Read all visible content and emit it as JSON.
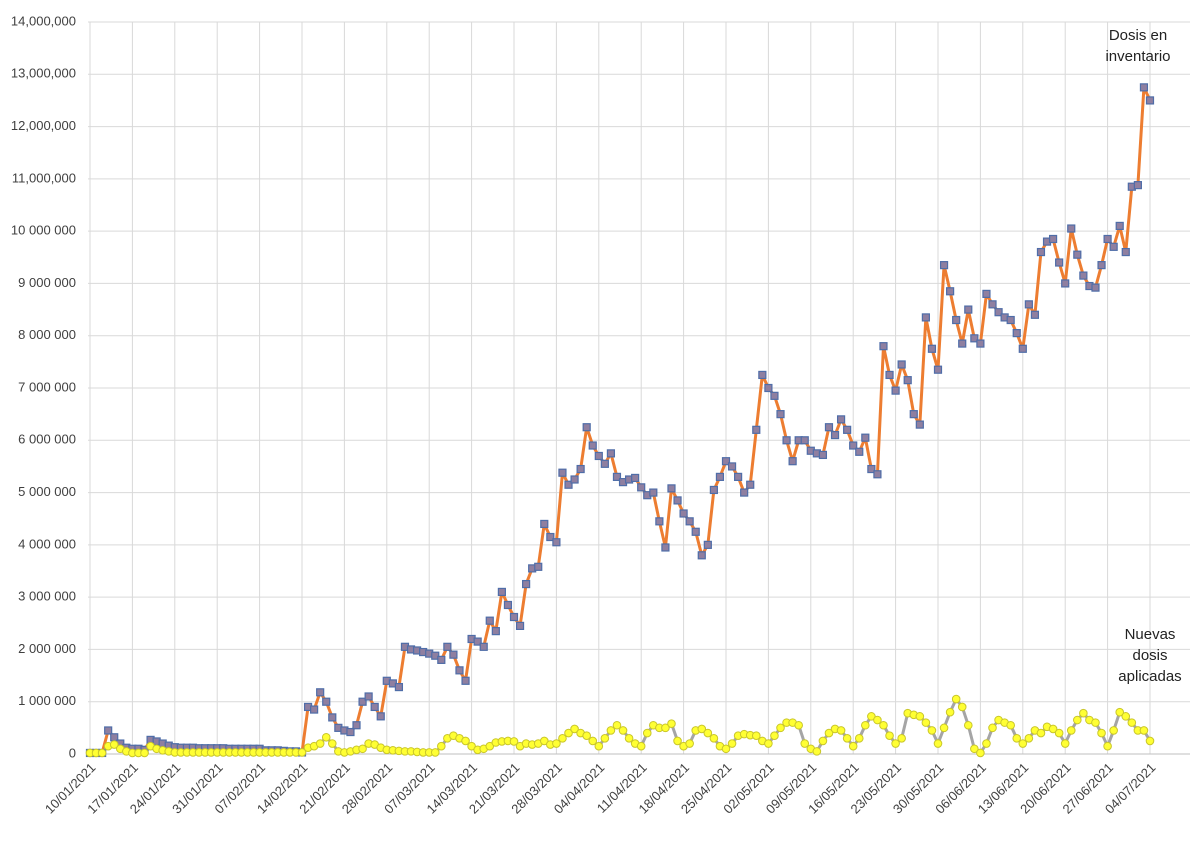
{
  "chart_data": {
    "type": "line",
    "categories": [
      "10/01/2021",
      null,
      null,
      null,
      null,
      null,
      null,
      "17/01/2021",
      null,
      null,
      null,
      null,
      null,
      null,
      "24/01/2021",
      null,
      null,
      null,
      null,
      null,
      null,
      "31/01/2021",
      null,
      null,
      null,
      null,
      null,
      null,
      "07/02/2021",
      null,
      null,
      null,
      null,
      null,
      null,
      "14/02/2021",
      null,
      null,
      null,
      null,
      null,
      null,
      "21/02/2021",
      null,
      null,
      null,
      null,
      null,
      null,
      "28/02/2021",
      null,
      null,
      null,
      null,
      null,
      null,
      "07/03/2021",
      null,
      null,
      null,
      null,
      null,
      null,
      "14/03/2021",
      null,
      null,
      null,
      null,
      null,
      null,
      "21/03/2021",
      null,
      null,
      null,
      null,
      null,
      null,
      "28/03/2021",
      null,
      null,
      null,
      null,
      null,
      null,
      "04/04/2021",
      null,
      null,
      null,
      null,
      null,
      null,
      "11/04/2021",
      null,
      null,
      null,
      null,
      null,
      null,
      "18/04/2021",
      null,
      null,
      null,
      null,
      null,
      null,
      "25/04/2021",
      null,
      null,
      null,
      null,
      null,
      null,
      "02/05/2021",
      null,
      null,
      null,
      null,
      null,
      null,
      "09/05/2021",
      null,
      null,
      null,
      null,
      null,
      null,
      "16/05/2021",
      null,
      null,
      null,
      null,
      null,
      null,
      "23/05/2021",
      null,
      null,
      null,
      null,
      null,
      null,
      "30/05/2021",
      null,
      null,
      null,
      null,
      null,
      null,
      "06/06/2021",
      null,
      null,
      null,
      null,
      null,
      null,
      "13/06/2021",
      null,
      null,
      null,
      null,
      null,
      null,
      "20/06/2021",
      null,
      null,
      null,
      null,
      null,
      null,
      "27/06/2021",
      null,
      null,
      null,
      null,
      null,
      null,
      "04/07/2021"
    ],
    "series": [
      {
        "name": "Dosis en inventario",
        "color": "#ed7d31",
        "marker": "square",
        "marker_color": "#8f7fa0",
        "marker_edge": "#4f6da8",
        "values": [
          20000,
          20000,
          20000,
          450000,
          320000,
          200000,
          120000,
          100000,
          100000,
          80000,
          270000,
          240000,
          200000,
          160000,
          130000,
          120000,
          120000,
          120000,
          110000,
          110000,
          110000,
          110000,
          110000,
          100000,
          100000,
          100000,
          100000,
          100000,
          100000,
          70000,
          70000,
          70000,
          60000,
          50000,
          50000,
          30000,
          900000,
          850000,
          1180000,
          1000000,
          700000,
          500000,
          450000,
          420000,
          550000,
          1000000,
          1100000,
          900000,
          720000,
          1400000,
          1350000,
          1280000,
          2050000,
          2000000,
          1980000,
          1950000,
          1920000,
          1880000,
          1800000,
          2050000,
          1900000,
          1600000,
          1400000,
          2200000,
          2150000,
          2050000,
          2550000,
          2350000,
          3100000,
          2850000,
          2620000,
          2450000,
          3250000,
          3550000,
          3580000,
          4400000,
          4150000,
          4050000,
          5380000,
          5150000,
          5250000,
          5450000,
          6250000,
          5900000,
          5700000,
          5550000,
          5750000,
          5300000,
          5200000,
          5250000,
          5280000,
          5100000,
          4950000,
          5000000,
          4450000,
          3950000,
          5080000,
          4850000,
          4600000,
          4450000,
          4250000,
          3800000,
          4000000,
          5050000,
          5300000,
          5600000,
          5500000,
          5300000,
          5000000,
          5150000,
          6200000,
          7250000,
          7000000,
          6850000,
          6500000,
          6000000,
          5600000,
          6000000,
          6000000,
          5800000,
          5750000,
          5720000,
          6250000,
          6100000,
          6400000,
          6200000,
          5900000,
          5780000,
          6050000,
          5450000,
          5350000,
          7800000,
          7250000,
          6950000,
          7450000,
          7150000,
          6500000,
          6300000,
          8350000,
          7750000,
          7350000,
          9350000,
          8850000,
          8300000,
          7850000,
          8500000,
          7950000,
          7850000,
          8800000,
          8600000,
          8450000,
          8350000,
          8300000,
          8050000,
          7750000,
          8600000,
          8400000,
          9600000,
          9800000,
          9850000,
          9400000,
          9000000,
          10050000,
          9550000,
          9150000,
          8950000,
          8920000,
          9350000,
          9850000,
          9700000,
          10100000,
          9600000,
          10850000,
          10880000,
          12750000,
          12500000
        ]
      },
      {
        "name": "Nuevas dosis aplicadas",
        "color": "#a5a5a5",
        "marker": "circle",
        "marker_color": "#ffff33",
        "marker_edge": "#c9c62a",
        "values": [
          20000,
          20000,
          20000,
          150000,
          180000,
          100000,
          50000,
          20000,
          20000,
          20000,
          150000,
          100000,
          70000,
          50000,
          30000,
          30000,
          30000,
          30000,
          30000,
          30000,
          30000,
          30000,
          30000,
          30000,
          30000,
          30000,
          30000,
          30000,
          30000,
          30000,
          30000,
          30000,
          30000,
          30000,
          30000,
          30000,
          120000,
          150000,
          200000,
          320000,
          200000,
          50000,
          30000,
          50000,
          80000,
          100000,
          200000,
          180000,
          120000,
          80000,
          70000,
          60000,
          50000,
          50000,
          40000,
          30000,
          30000,
          30000,
          150000,
          300000,
          350000,
          300000,
          250000,
          150000,
          80000,
          100000,
          150000,
          220000,
          240000,
          250000,
          240000,
          150000,
          200000,
          180000,
          200000,
          250000,
          180000,
          200000,
          300000,
          400000,
          480000,
          400000,
          350000,
          250000,
          150000,
          300000,
          450000,
          550000,
          450000,
          300000,
          200000,
          150000,
          400000,
          550000,
          500000,
          500000,
          580000,
          250000,
          150000,
          200000,
          450000,
          480000,
          400000,
          300000,
          150000,
          100000,
          200000,
          350000,
          380000,
          360000,
          350000,
          250000,
          200000,
          350000,
          500000,
          600000,
          600000,
          550000,
          200000,
          100000,
          50000,
          250000,
          400000,
          480000,
          450000,
          300000,
          150000,
          300000,
          550000,
          720000,
          650000,
          550000,
          350000,
          200000,
          300000,
          780000,
          750000,
          720000,
          600000,
          450000,
          200000,
          500000,
          800000,
          1050000,
          900000,
          550000,
          100000,
          20000,
          200000,
          500000,
          650000,
          600000,
          550000,
          300000,
          200000,
          300000,
          450000,
          400000,
          520000,
          480000,
          400000,
          200000,
          450000,
          650000,
          780000,
          650000,
          600000,
          400000,
          150000,
          450000,
          800000,
          720000,
          600000,
          450000,
          450000,
          250000
        ]
      }
    ],
    "ylim": [
      0,
      14000000
    ],
    "yticks": [
      0,
      {
        "value": 1000000,
        "label": "1 000 000"
      },
      {
        "value": 2000000,
        "label": "2 000 000"
      },
      {
        "value": 3000000,
        "label": "3 000 000"
      },
      {
        "value": 4000000,
        "label": "4 000 000"
      },
      {
        "value": 5000000,
        "label": "5 000 000"
      },
      {
        "value": 6000000,
        "label": "6 000 000"
      },
      {
        "value": 7000000,
        "label": "7 000 000"
      },
      {
        "value": 8000000,
        "label": "8 000 000"
      },
      {
        "value": 9000000,
        "label": "9 000 000"
      },
      {
        "value": 10000000,
        "label": "10 000 000"
      },
      {
        "value": 11000000,
        "label": "11,000,000"
      },
      {
        "value": 12000000,
        "label": "12,000,000"
      },
      {
        "value": 13000000,
        "label": "13,000,000"
      },
      {
        "value": 14000000,
        "label": "14,000,000"
      }
    ],
    "grid": true
  }
}
